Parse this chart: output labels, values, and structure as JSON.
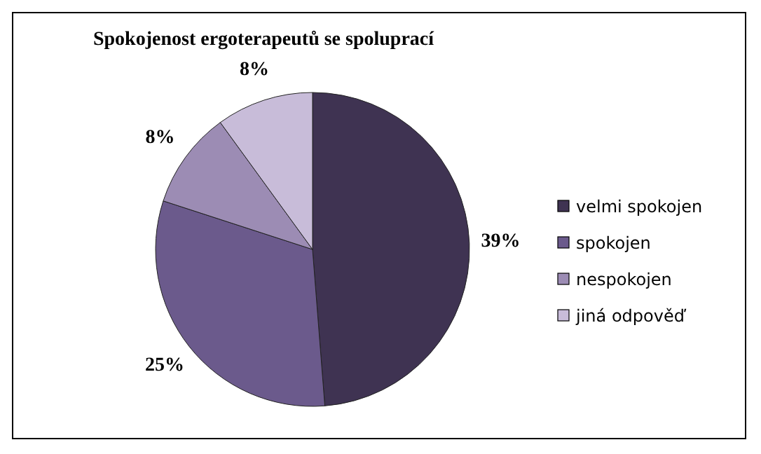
{
  "chart_data": {
    "type": "pie",
    "title": "Spokojenost ergoterapeutů se spoluprací",
    "categories": [
      "velmi spokojen",
      "spokojen",
      "nespokojen",
      "jiná odpověď"
    ],
    "values": [
      39,
      25,
      8,
      8
    ],
    "value_labels": [
      "39%",
      "25%",
      "8%",
      "8%"
    ],
    "colors": [
      "#3f3352",
      "#6b5a8c",
      "#9c8cb4",
      "#c8bcd9"
    ],
    "legend": "right"
  }
}
